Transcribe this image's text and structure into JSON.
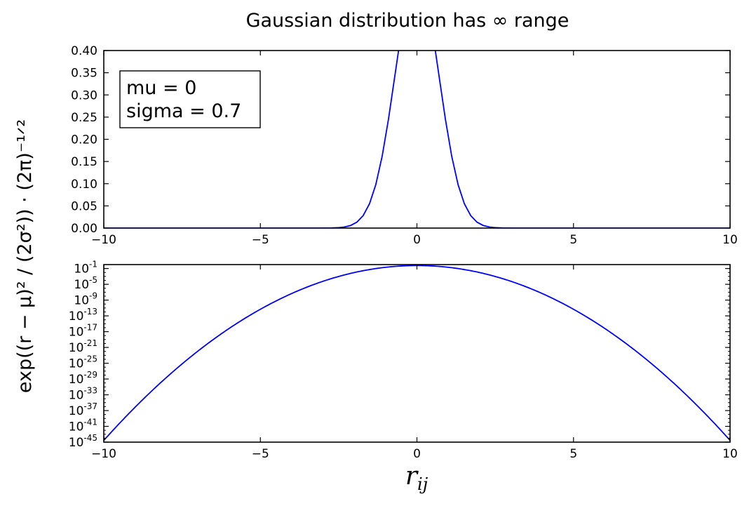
{
  "figure": {
    "title": "Gaussian distribution has ∞ range",
    "ylabel": "exp((r − μ)² / (2σ²)) · (2π)⁻¹ᐟ²",
    "xlabel_main": "r",
    "xlabel_sub": "ij",
    "annotation": [
      "mu = 0",
      "sigma = 0.7"
    ]
  },
  "colors": {
    "line": "#0000ff",
    "axes": "#000000",
    "background": "#ffffff"
  },
  "chart_data": [
    {
      "type": "line",
      "scale": "linear",
      "function": "gaussian_pdf",
      "mu": 0,
      "sigma": 0.7,
      "x_range": [
        -10,
        10
      ],
      "ylim": [
        0,
        0.4
      ],
      "x_ticks": [
        "−10",
        "−5",
        "0",
        "5",
        "10"
      ],
      "y_ticks": [
        "0.00",
        "0.05",
        "0.10",
        "0.15",
        "0.20",
        "0.25",
        "0.30",
        "0.35",
        "0.40"
      ],
      "peak_value": 0.399,
      "legend": "annotation box top-left",
      "grid": false
    },
    {
      "type": "line",
      "scale": "log",
      "function": "gaussian_pdf",
      "mu": 0,
      "sigma": 0.7,
      "x_range": [
        -10,
        10
      ],
      "ylim_exponent": [
        -45,
        0
      ],
      "x_ticks": [
        "−10",
        "−5",
        "0",
        "5",
        "10"
      ],
      "y_tick_base": "10",
      "y_tick_exponents": [
        "-1",
        "-5",
        "-9",
        "-13",
        "-17",
        "-21",
        "-25",
        "-29",
        "-33",
        "-37",
        "-41",
        "-45"
      ],
      "grid": false
    }
  ]
}
